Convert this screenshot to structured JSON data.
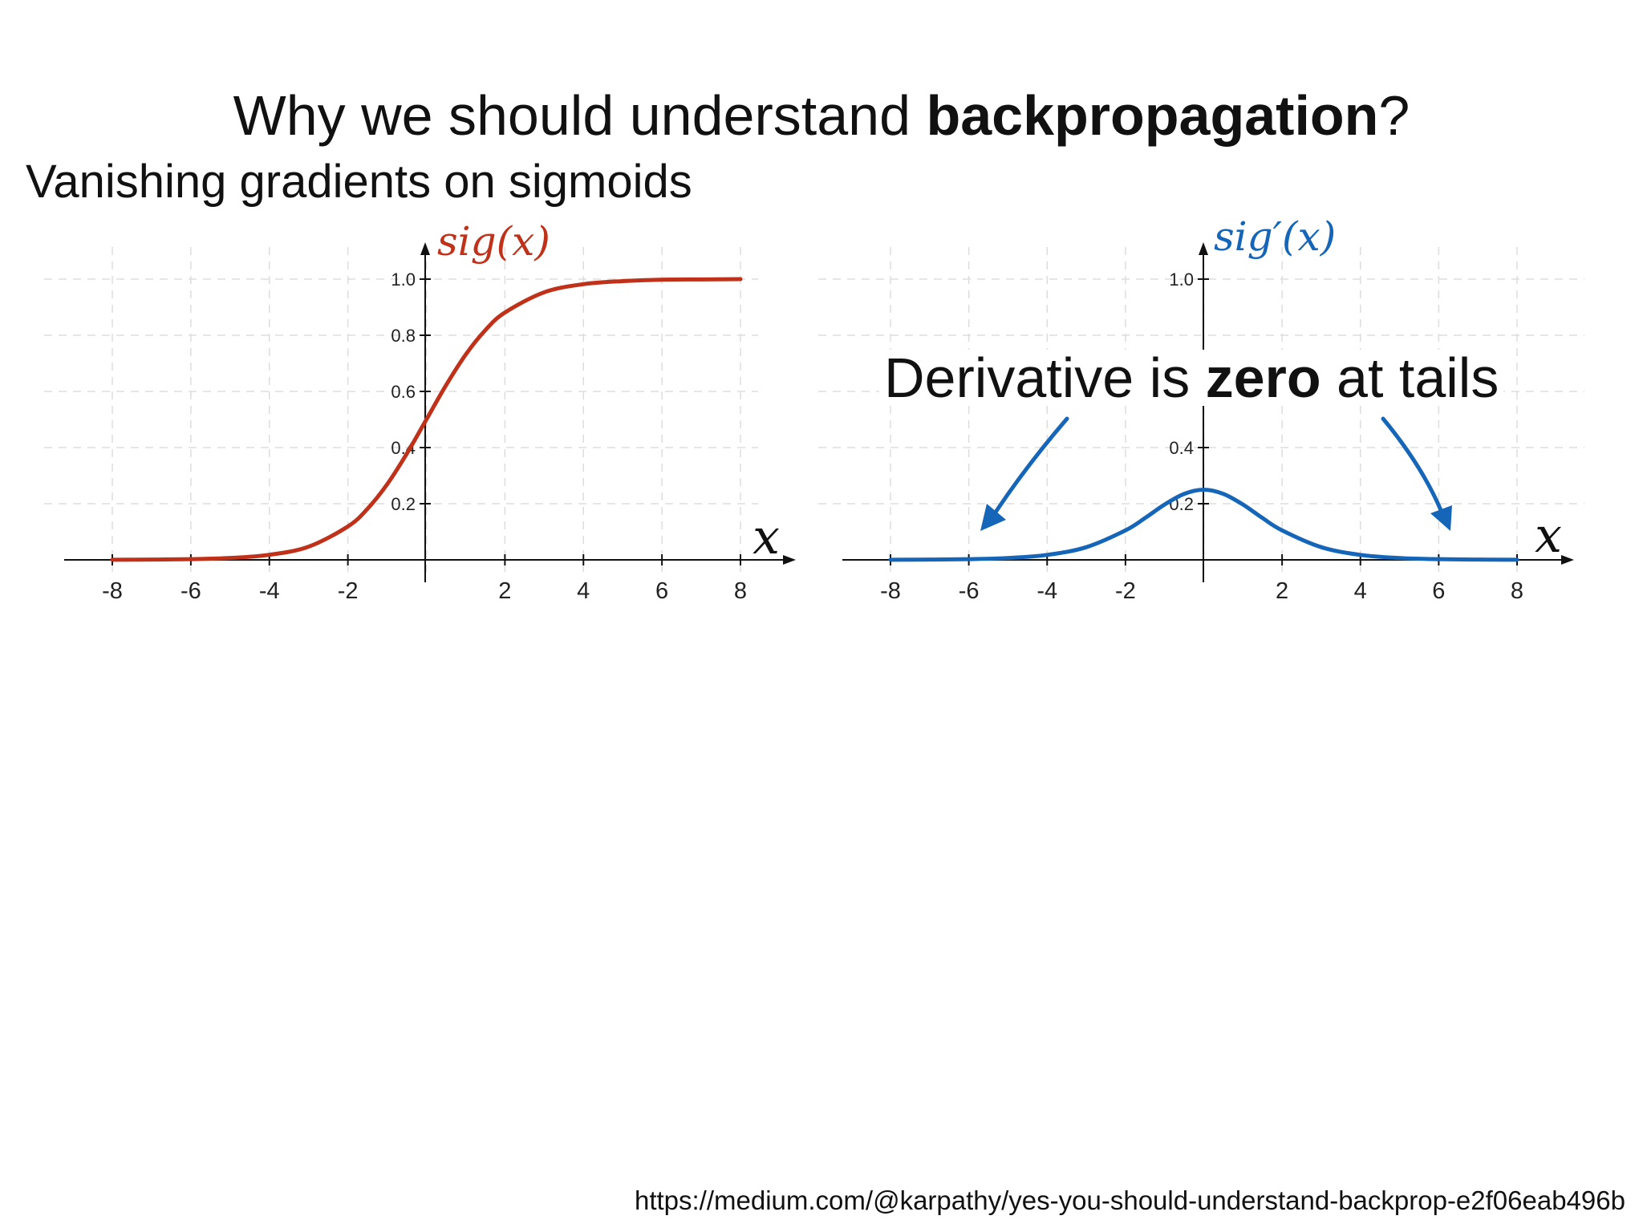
{
  "slide": {
    "title_plain": "Why we should understand ",
    "title_bold": "backpropagation",
    "title_end": "?",
    "subtitle": "Vanishing gradients on sigmoids",
    "callout_before": "Derivative is ",
    "callout_bold": "zero",
    "callout_after": " at tails",
    "source_url": "https://medium.com/@karpathy/yes-you-should-understand-backprop-e2f06eab496b"
  },
  "chart_data": [
    {
      "type": "line",
      "title": "sig(x)",
      "title_color": "#c0311a",
      "xlabel": "x",
      "ylabel": "",
      "xlim": [
        -8,
        8
      ],
      "ylim": [
        0,
        1
      ],
      "xticks": [
        "-8",
        "-6",
        "-4",
        "-2",
        "2",
        "4",
        "6",
        "8"
      ],
      "yticks": [
        "0.2",
        "0.4",
        "0.6",
        "0.8",
        "1.0"
      ],
      "grid": true,
      "series": [
        {
          "color": "#c0311a",
          "x": [
            -8,
            -7,
            -6,
            -5,
            -4,
            -3,
            -2,
            -1.5,
            -1,
            -0.5,
            0,
            0.5,
            1,
            1.5,
            2,
            3,
            4,
            5,
            6,
            7,
            8
          ],
          "y": [
            0.0003,
            0.0009,
            0.0025,
            0.0067,
            0.018,
            0.047,
            0.119,
            0.182,
            0.269,
            0.378,
            0.5,
            0.622,
            0.731,
            0.818,
            0.881,
            0.953,
            0.982,
            0.993,
            0.998,
            0.999,
            1.0
          ]
        }
      ]
    },
    {
      "type": "line",
      "title": "sig′(x)",
      "title_color": "#1565b8",
      "xlabel": "x",
      "ylabel": "",
      "xlim": [
        -8,
        8
      ],
      "ylim": [
        0,
        1
      ],
      "xticks": [
        "-8",
        "-6",
        "-4",
        "-2",
        "2",
        "4",
        "6",
        "8"
      ],
      "yticks": [
        "0.2",
        "0.4",
        "1.0"
      ],
      "grid": true,
      "series": [
        {
          "color": "#1565b8",
          "x": [
            -8,
            -7,
            -6,
            -5,
            -4,
            -3,
            -2,
            -1.5,
            -1,
            -0.5,
            0,
            0.5,
            1,
            1.5,
            2,
            3,
            4,
            5,
            6,
            7,
            8
          ],
          "y": [
            0.0003,
            0.0009,
            0.0025,
            0.0066,
            0.0177,
            0.0452,
            0.105,
            0.149,
            0.197,
            0.235,
            0.25,
            0.235,
            0.197,
            0.149,
            0.105,
            0.0452,
            0.0177,
            0.0066,
            0.0025,
            0.0009,
            0.0003
          ]
        }
      ]
    }
  ]
}
